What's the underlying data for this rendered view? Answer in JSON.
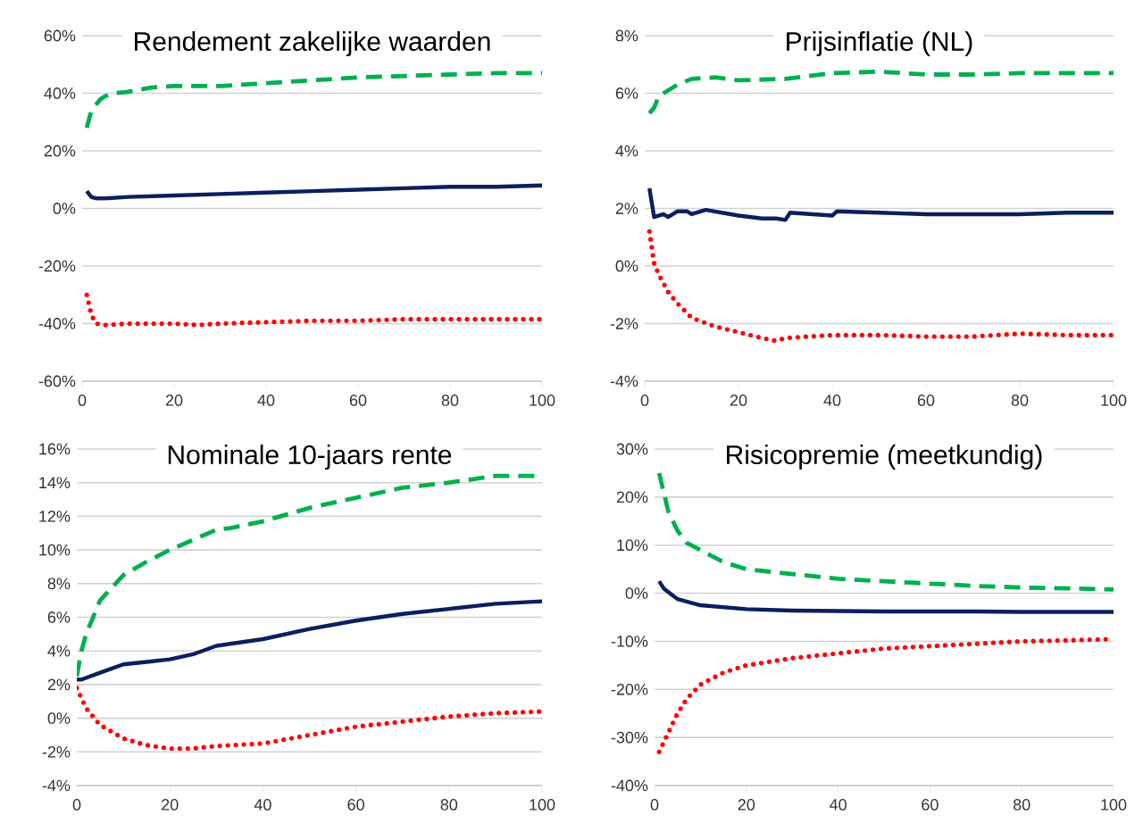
{
  "chart_data": [
    {
      "type": "line",
      "title": "Rendement zakelijke waarden",
      "grid": "y",
      "xlim": [
        0,
        100
      ],
      "xticks": [
        0,
        20,
        40,
        60,
        80,
        100
      ],
      "ylim": [
        -60,
        60
      ],
      "yticks": [
        {
          "value": -60,
          "label": "-60%"
        },
        {
          "value": -40,
          "label": "-40%"
        },
        {
          "value": -20,
          "label": "-20%"
        },
        {
          "value": 0,
          "label": "0%"
        },
        {
          "value": 20,
          "label": "20%"
        },
        {
          "value": 40,
          "label": "40%"
        },
        {
          "value": 60,
          "label": "60%"
        }
      ],
      "series": [
        {
          "color": "#0b1f5e",
          "line_style": "solid",
          "x": [
            1,
            2,
            3,
            5,
            10,
            20,
            30,
            40,
            50,
            60,
            70,
            80,
            90,
            100
          ],
          "values": [
            6,
            4,
            3.5,
            3.5,
            4,
            4.5,
            5,
            5.5,
            6,
            6.5,
            7,
            7.5,
            7.5,
            8
          ]
        },
        {
          "color": "#00b050",
          "line_style": "dashed",
          "x": [
            1,
            2,
            4,
            5,
            7,
            10,
            15,
            20,
            30,
            40,
            50,
            60,
            70,
            80,
            90,
            100
          ],
          "values": [
            28,
            34,
            38,
            39,
            40,
            40.5,
            42,
            42.5,
            42.5,
            43.5,
            44.5,
            45.5,
            46,
            46.5,
            47,
            47
          ]
        },
        {
          "color": "#ff0000",
          "line_style": "dotted",
          "x": [
            1,
            2,
            3,
            5,
            10,
            20,
            25,
            30,
            40,
            50,
            60,
            70,
            80,
            90,
            100
          ],
          "values": [
            -30,
            -37,
            -40,
            -40.5,
            -40,
            -40,
            -40.5,
            -40,
            -39.5,
            -39,
            -39,
            -38.5,
            -38.5,
            -38.5,
            -38.5
          ]
        }
      ]
    },
    {
      "type": "line",
      "title": "Prijsinflatie (NL)",
      "grid": "y",
      "xlim": [
        0,
        100
      ],
      "xticks": [
        0,
        20,
        40,
        60,
        80,
        100
      ],
      "ylim": [
        -4,
        8
      ],
      "yticks": [
        {
          "value": -4,
          "label": "-4%"
        },
        {
          "value": -2,
          "label": "-2%"
        },
        {
          "value": 0,
          "label": "0%"
        },
        {
          "value": 2,
          "label": "2%"
        },
        {
          "value": 4,
          "label": "4%"
        },
        {
          "value": 6,
          "label": "6%"
        },
        {
          "value": 8,
          "label": "8%"
        }
      ],
      "series": [
        {
          "color": "#0b1f5e",
          "line_style": "solid",
          "x": [
            1,
            2,
            4,
            5,
            7,
            9,
            10,
            13,
            20,
            25,
            28,
            30,
            31,
            40,
            41,
            50,
            60,
            70,
            80,
            90,
            100
          ],
          "values": [
            2.7,
            1.7,
            1.8,
            1.7,
            1.9,
            1.9,
            1.8,
            1.95,
            1.75,
            1.65,
            1.65,
            1.6,
            1.85,
            1.75,
            1.9,
            1.85,
            1.8,
            1.8,
            1.8,
            1.85,
            1.85
          ]
        },
        {
          "color": "#00b050",
          "line_style": "dashed",
          "x": [
            1,
            2,
            3,
            5,
            7,
            10,
            15,
            20,
            30,
            40,
            50,
            60,
            70,
            80,
            90,
            100
          ],
          "values": [
            5.3,
            5.5,
            5.9,
            6.1,
            6.3,
            6.5,
            6.55,
            6.45,
            6.5,
            6.7,
            6.75,
            6.65,
            6.65,
            6.7,
            6.7,
            6.7
          ]
        },
        {
          "color": "#ff0000",
          "line_style": "dotted",
          "x": [
            1,
            2,
            3,
            5,
            7,
            10,
            15,
            20,
            25,
            28,
            30,
            40,
            50,
            60,
            70,
            80,
            90,
            100
          ],
          "values": [
            1.2,
            0.1,
            -0.3,
            -0.9,
            -1.3,
            -1.8,
            -2.1,
            -2.3,
            -2.5,
            -2.6,
            -2.5,
            -2.4,
            -2.4,
            -2.45,
            -2.45,
            -2.35,
            -2.4,
            -2.4
          ]
        }
      ]
    },
    {
      "type": "line",
      "title": "Nominale 10-jaars rente",
      "grid": "y",
      "xlim": [
        0,
        100
      ],
      "xticks": [
        0,
        20,
        40,
        60,
        80,
        100
      ],
      "ylim": [
        -4,
        16
      ],
      "yticks": [
        {
          "value": -4,
          "label": "-4%"
        },
        {
          "value": -2,
          "label": "-2%"
        },
        {
          "value": 0,
          "label": "0%"
        },
        {
          "value": 2,
          "label": "2%"
        },
        {
          "value": 4,
          "label": "4%"
        },
        {
          "value": 6,
          "label": "6%"
        },
        {
          "value": 8,
          "label": "8%"
        },
        {
          "value": 10,
          "label": "10%"
        },
        {
          "value": 12,
          "label": "12%"
        },
        {
          "value": 14,
          "label": "14%"
        },
        {
          "value": 16,
          "label": "16%"
        }
      ],
      "series": [
        {
          "color": "#0b1f5e",
          "line_style": "solid",
          "x": [
            0,
            1,
            5,
            10,
            15,
            20,
            25,
            30,
            40,
            50,
            60,
            70,
            80,
            90,
            100
          ],
          "values": [
            2.3,
            2.3,
            2.7,
            3.2,
            3.35,
            3.5,
            3.8,
            4.3,
            4.7,
            5.3,
            5.8,
            6.2,
            6.5,
            6.8,
            6.95
          ]
        },
        {
          "color": "#00b050",
          "line_style": "dashed",
          "x": [
            0,
            1,
            2,
            5,
            10,
            15,
            20,
            25,
            30,
            33,
            40,
            50,
            60,
            70,
            80,
            90,
            100
          ],
          "values": [
            2.5,
            4,
            5,
            7,
            8.5,
            9.3,
            10,
            10.6,
            11.2,
            11.3,
            11.7,
            12.5,
            13.1,
            13.7,
            14,
            14.4,
            14.4
          ]
        },
        {
          "color": "#ff0000",
          "line_style": "dotted",
          "x": [
            0,
            2,
            5,
            10,
            15,
            20,
            25,
            30,
            40,
            50,
            60,
            70,
            80,
            90,
            100
          ],
          "values": [
            1.8,
            0.6,
            -0.4,
            -1.2,
            -1.6,
            -1.8,
            -1.8,
            -1.65,
            -1.5,
            -1.0,
            -0.5,
            -0.2,
            0.1,
            0.3,
            0.4
          ]
        }
      ]
    },
    {
      "type": "line",
      "title": "Risicopremie (meetkundig)",
      "grid": "y",
      "xlim": [
        0,
        100
      ],
      "xticks": [
        0,
        20,
        40,
        60,
        80,
        100
      ],
      "ylim": [
        -40,
        30
      ],
      "yticks": [
        {
          "value": -40,
          "label": "-40%"
        },
        {
          "value": -30,
          "label": "-30%"
        },
        {
          "value": -20,
          "label": "-20%"
        },
        {
          "value": -10,
          "label": "-10%"
        },
        {
          "value": 0,
          "label": "0%"
        },
        {
          "value": 10,
          "label": "10%"
        },
        {
          "value": 20,
          "label": "20%"
        },
        {
          "value": 30,
          "label": "30%"
        }
      ],
      "series": [
        {
          "color": "#0b1f5e",
          "line_style": "solid",
          "x": [
            1,
            2,
            4,
            5,
            10,
            20,
            30,
            40,
            50,
            60,
            70,
            80,
            90,
            100
          ],
          "values": [
            2.5,
            1,
            -0.5,
            -1.2,
            -2.5,
            -3.3,
            -3.6,
            -3.7,
            -3.8,
            -3.8,
            -3.8,
            -3.9,
            -3.9,
            -3.9
          ]
        },
        {
          "color": "#00b050",
          "line_style": "dashed",
          "x": [
            1,
            2,
            3,
            5,
            7,
            10,
            15,
            20,
            30,
            40,
            50,
            60,
            70,
            80,
            90,
            100
          ],
          "values": [
            25,
            21,
            17,
            13,
            10.5,
            9,
            6.5,
            5,
            4,
            3,
            2.5,
            2,
            1.5,
            1.2,
            1,
            0.8
          ]
        },
        {
          "color": "#ff0000",
          "line_style": "dotted",
          "x": [
            1,
            2,
            3,
            5,
            7,
            10,
            15,
            20,
            30,
            40,
            50,
            60,
            70,
            80,
            90,
            100
          ],
          "values": [
            -33,
            -31,
            -29,
            -25,
            -22,
            -19,
            -16.5,
            -15,
            -13.5,
            -12.5,
            -11.5,
            -11,
            -10.5,
            -10,
            -9.8,
            -9.5
          ]
        }
      ]
    }
  ]
}
